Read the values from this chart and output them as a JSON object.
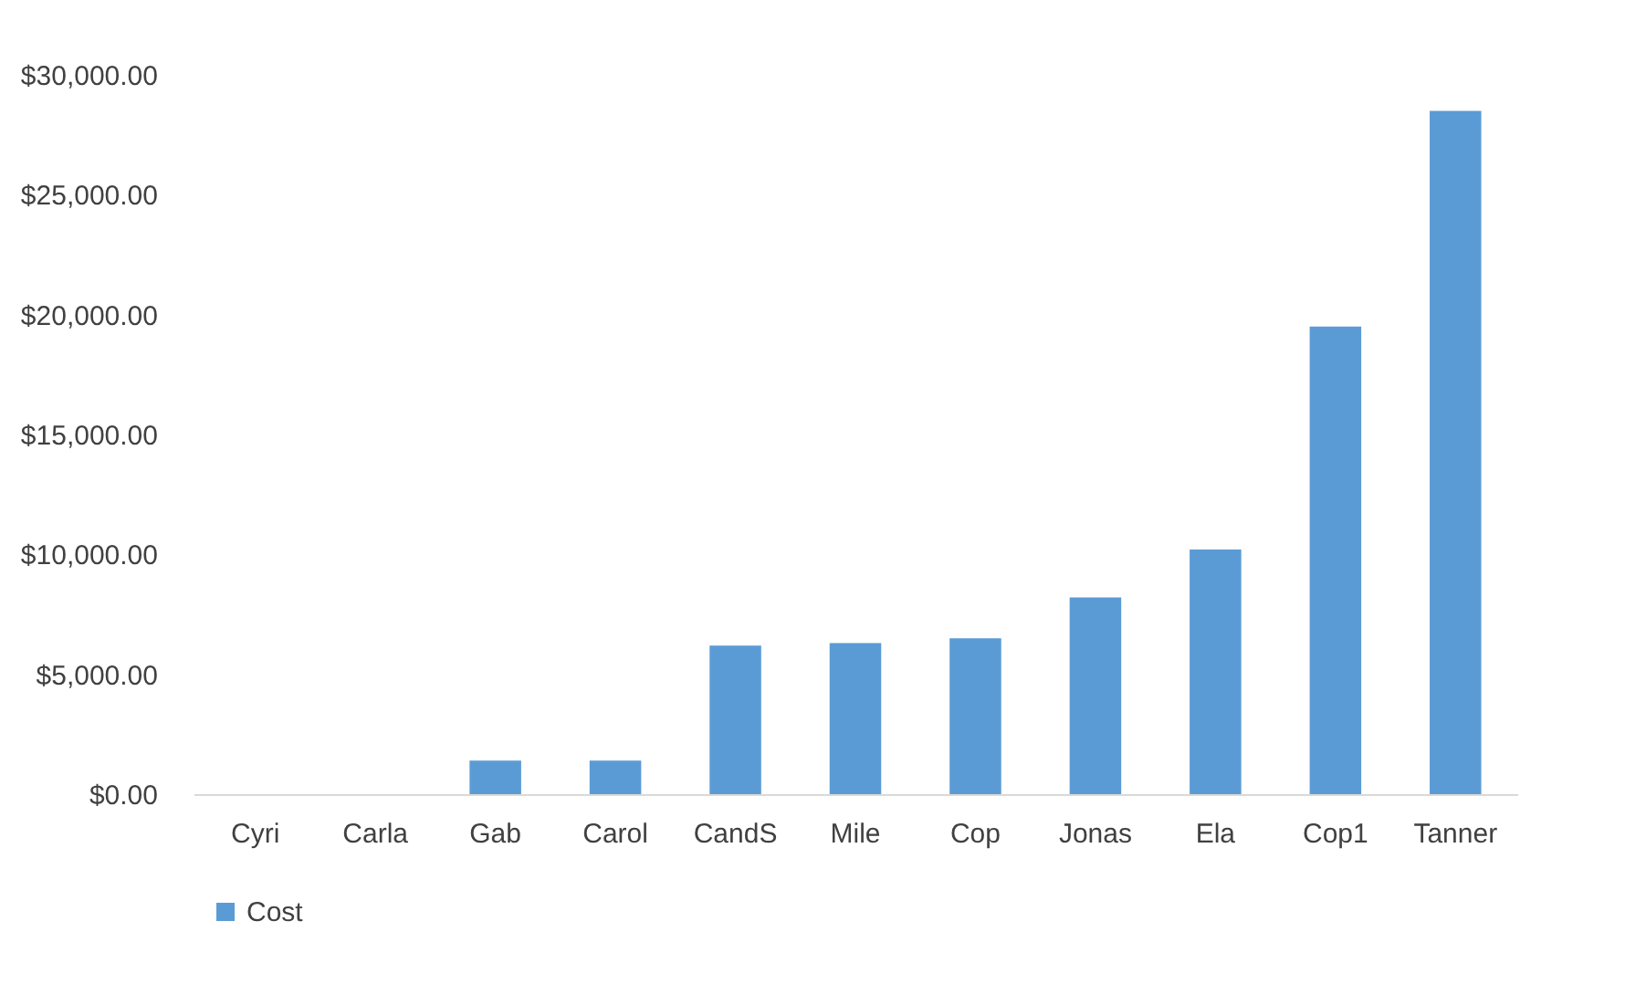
{
  "chart_data": {
    "type": "bar",
    "categories": [
      "Cyri",
      "Carla",
      "Gab",
      "Carol",
      "CandS",
      "Mile",
      "Cop",
      "Jonas",
      "Ela",
      "Cop1",
      "Tanner"
    ],
    "series": [
      {
        "name": "Cost",
        "color": "#5b9bd5",
        "values": [
          0,
          0,
          1400,
          1400,
          6200,
          6300,
          6500,
          8200,
          10200,
          19500,
          28500
        ]
      }
    ],
    "ylim": [
      0,
      30000
    ],
    "yticks": [
      {
        "value": 0,
        "label": "$0.00"
      },
      {
        "value": 5000,
        "label": "$5,000.00"
      },
      {
        "value": 10000,
        "label": "$10,000.00"
      },
      {
        "value": 15000,
        "label": "$15,000.00"
      },
      {
        "value": 20000,
        "label": "$20,000.00"
      },
      {
        "value": 25000,
        "label": "$25,000.00"
      },
      {
        "value": 30000,
        "label": "$30,000.00"
      }
    ],
    "grid": false,
    "legend": "bottom"
  }
}
